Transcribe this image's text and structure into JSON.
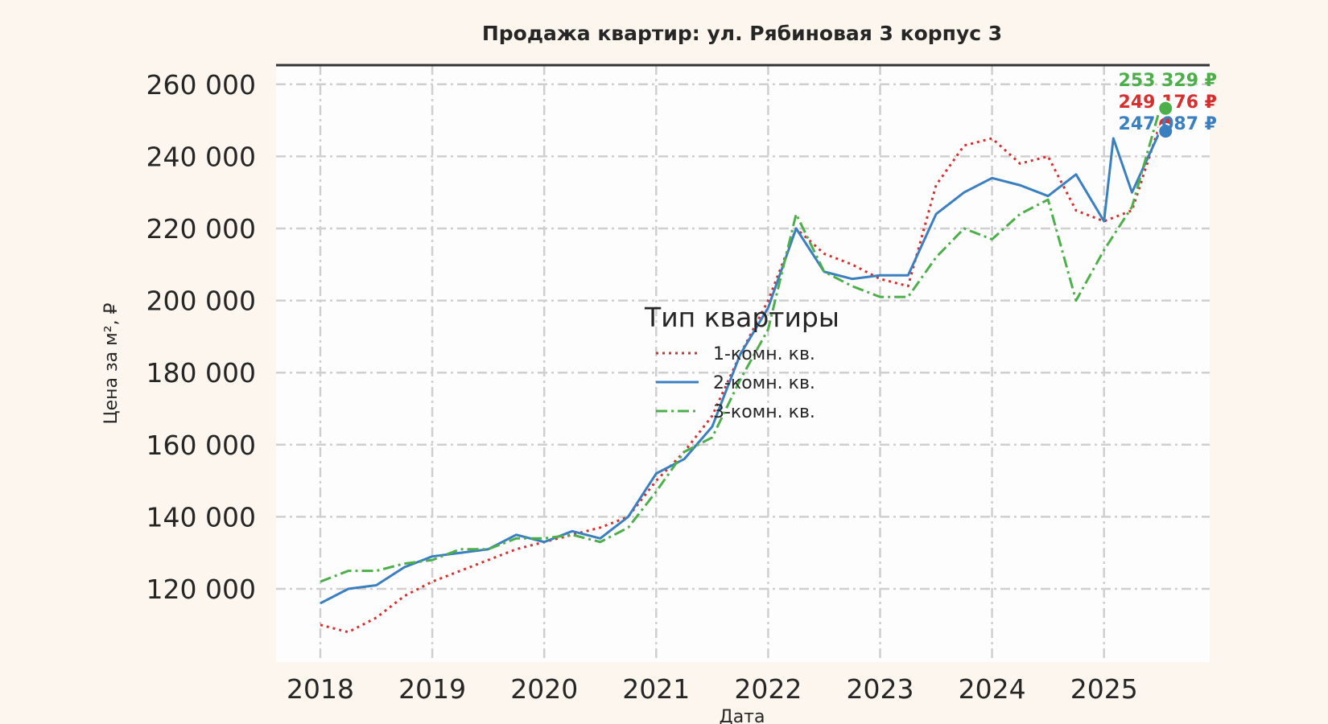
{
  "chart_data": {
    "type": "line",
    "title": "Продажа квартир: ул. Рябиновая 3 корпус 3",
    "xlabel": "Дата",
    "ylabel": "Цена за м², ₽",
    "xlim": [
      "2017-08",
      "2025-12"
    ],
    "ylim": [
      100000,
      264000
    ],
    "x_ticks": [
      "2018",
      "2019",
      "2020",
      "2021",
      "2022",
      "2023",
      "2024",
      "2025"
    ],
    "y_ticks": [
      {
        "value": 120000,
        "label": "120 000"
      },
      {
        "value": 140000,
        "label": "140 000"
      },
      {
        "value": 160000,
        "label": "160 000"
      },
      {
        "value": 180000,
        "label": "180 000"
      },
      {
        "value": 200000,
        "label": "200 000"
      },
      {
        "value": 220000,
        "label": "220 000"
      },
      {
        "value": 240000,
        "label": "240 000"
      },
      {
        "value": 260000,
        "label": "260 000"
      }
    ],
    "grid": true,
    "legend": {
      "title": "Тип квартиры",
      "placement": "center"
    },
    "series": [
      {
        "name": "1-комн. кв.",
        "color": "#d62f2f",
        "style": "dotted",
        "x": [
          "2018-01",
          "2018-04",
          "2018-07",
          "2018-10",
          "2019-01",
          "2019-04",
          "2019-07",
          "2019-10",
          "2020-01",
          "2020-04",
          "2020-07",
          "2020-10",
          "2021-01",
          "2021-04",
          "2021-07",
          "2021-10",
          "2022-01",
          "2022-04",
          "2022-07",
          "2022-10",
          "2023-01",
          "2023-04",
          "2023-07",
          "2023-10",
          "2024-01",
          "2024-04",
          "2024-07",
          "2024-10",
          "2025-01",
          "2025-04",
          "2025-07"
        ],
        "y": [
          110000,
          108000,
          112000,
          118000,
          122000,
          125000,
          128000,
          131000,
          133000,
          135000,
          137000,
          140000,
          150000,
          158000,
          168000,
          185000,
          200000,
          220000,
          213000,
          210000,
          206000,
          204000,
          232000,
          243000,
          245000,
          238000,
          240000,
          225000,
          222000,
          225000,
          249000
        ],
        "end_label": "249 176 ₽"
      },
      {
        "name": "2-комн. кв.",
        "color": "#3a7fbf",
        "style": "solid",
        "x": [
          "2018-01",
          "2018-04",
          "2018-07",
          "2018-10",
          "2019-01",
          "2019-04",
          "2019-07",
          "2019-10",
          "2020-01",
          "2020-04",
          "2020-07",
          "2020-10",
          "2021-01",
          "2021-04",
          "2021-07",
          "2021-10",
          "2022-01",
          "2022-04",
          "2022-07",
          "2022-10",
          "2023-01",
          "2023-04",
          "2023-07",
          "2023-10",
          "2024-01",
          "2024-04",
          "2024-07",
          "2024-10",
          "2025-01",
          "2025-02",
          "2025-04",
          "2025-07"
        ],
        "y": [
          116000,
          120000,
          121000,
          126000,
          129000,
          130000,
          131000,
          135000,
          133000,
          136000,
          134000,
          140000,
          152000,
          156000,
          165000,
          185000,
          198000,
          220000,
          208000,
          206000,
          207000,
          207000,
          224000,
          230000,
          234000,
          232000,
          229000,
          235000,
          222000,
          245000,
          230000,
          247000
        ],
        "end_label": "247 087 ₽"
      },
      {
        "name": "3-комн. кв.",
        "color": "#4daf4a",
        "style": "dashdot",
        "x": [
          "2018-01",
          "2018-04",
          "2018-07",
          "2018-10",
          "2019-01",
          "2019-04",
          "2019-07",
          "2019-10",
          "2020-01",
          "2020-04",
          "2020-07",
          "2020-10",
          "2021-01",
          "2021-04",
          "2021-07",
          "2021-10",
          "2022-01",
          "2022-04",
          "2022-07",
          "2022-10",
          "2023-01",
          "2023-04",
          "2023-07",
          "2023-10",
          "2024-01",
          "2024-04",
          "2024-07",
          "2024-10",
          "2025-01",
          "2025-04",
          "2025-07"
        ],
        "y": [
          122000,
          125000,
          125000,
          127000,
          128000,
          131000,
          131000,
          134000,
          134000,
          135000,
          133000,
          137000,
          147000,
          158000,
          162000,
          178000,
          192000,
          224000,
          208000,
          204000,
          201000,
          201000,
          212000,
          220000,
          217000,
          224000,
          228000,
          200000,
          214000,
          226000,
          253329
        ],
        "end_label": "253 329 ₽"
      }
    ]
  }
}
